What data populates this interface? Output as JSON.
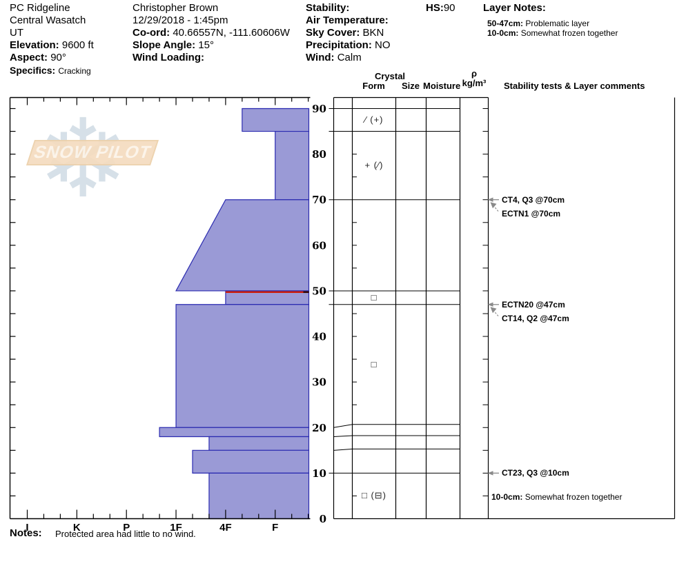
{
  "header": {
    "site": {
      "name": "PC Ridgeline",
      "range": "Central Wasatch",
      "state": "UT",
      "elevation_label": "Elevation:",
      "elevation": "9600 ft",
      "aspect_label": "Aspect:",
      "aspect": "90°",
      "specifics_label": "Specifics:",
      "specifics": "Cracking"
    },
    "observer": {
      "name": "Christopher Brown",
      "datetime": "12/29/2018 - 1:45pm",
      "coord_label": "Co-ord:",
      "coord": "40.66557N, -111.60606W",
      "slope_angle_label": "Slope Angle:",
      "slope_angle": "15°",
      "wind_loading_label": "Wind Loading:",
      "wind_loading": ""
    },
    "conditions": {
      "stability_label": "Stability:",
      "stability": "",
      "air_temp_label": "Air Temperature:",
      "air_temp": "",
      "sky_label": "Sky Cover:",
      "sky": "BKN",
      "precip_label": "Precipitation:",
      "precip": "NO",
      "wind_label": "Wind:",
      "wind": "Calm"
    },
    "hs_label": "HS:",
    "hs": "90",
    "layer_notes": {
      "title": "Layer Notes:",
      "items": [
        {
          "range": "50-47cm:",
          "text": "Problematic layer"
        },
        {
          "range": "10-0cm:",
          "text": "Somewhat frozen together"
        }
      ]
    }
  },
  "table_headers": {
    "crystal_group": "Crystal",
    "form": "Form",
    "size": "Size",
    "moisture": "Moisture",
    "density_rho": "ρ",
    "density_unit": "kg/m³",
    "comments": "Stability tests & Layer comments"
  },
  "chart_data": {
    "type": "snow-profile",
    "depth_unit": "cm",
    "hs_cm": 90,
    "depth_ticks_labeled": [
      0,
      10,
      20,
      30,
      40,
      50,
      60,
      70,
      80,
      90
    ],
    "depth_minor_step_cm": 5,
    "hardness_categories": [
      "I",
      "K",
      "P",
      "1F",
      "4F",
      "F"
    ],
    "layers": [
      {
        "top_cm": 90,
        "bottom_cm": 85,
        "hardness": "4F-",
        "grain_form": "∕ (+)",
        "problematic": false
      },
      {
        "top_cm": 85,
        "bottom_cm": 70,
        "hardness": "F",
        "grain_form": "+ (∕)",
        "problematic": false
      },
      {
        "top_cm": 70,
        "bottom_cm": 50,
        "hardness_top": "4F",
        "hardness_bottom": "1F",
        "grain_form": "",
        "problematic": false
      },
      {
        "top_cm": 50,
        "bottom_cm": 47,
        "hardness": "4F",
        "grain_form": "□",
        "problematic": true
      },
      {
        "top_cm": 47,
        "bottom_cm": 20,
        "hardness": "1F",
        "grain_form": "□",
        "problematic": false
      },
      {
        "top_cm": 20,
        "bottom_cm": 18,
        "hardness": "1F+",
        "grain_form": "",
        "problematic": false
      },
      {
        "top_cm": 18,
        "bottom_cm": 15,
        "hardness": "4F+",
        "grain_form": "",
        "problematic": false
      },
      {
        "top_cm": 15,
        "bottom_cm": 10,
        "hardness": "1F-",
        "grain_form": "",
        "problematic": false
      },
      {
        "top_cm": 10,
        "bottom_cm": 0,
        "hardness": "4F+",
        "grain_form": "□ (⊟)",
        "problematic": false
      }
    ],
    "stability_tests": [
      {
        "label": "CT4, Q3 @70cm",
        "depth_cm": 70,
        "offset_row": 0
      },
      {
        "label": "ECTN1 @70cm",
        "depth_cm": 70,
        "offset_row": 1
      },
      {
        "label": "ECTN20 @47cm",
        "depth_cm": 47,
        "offset_row": 0
      },
      {
        "label": "CT14, Q2 @47cm",
        "depth_cm": 47,
        "offset_row": 1
      },
      {
        "label": "CT23, Q3 @10cm",
        "depth_cm": 10,
        "offset_row": 0
      }
    ],
    "chart_layer_comment": {
      "range": "10-0cm:",
      "text": "Somewhat frozen together",
      "depth_cm": 5
    }
  },
  "notes": {
    "label": "Notes:",
    "text": "Protected area had little to no wind."
  },
  "watermark": {
    "text": "SNOW PILOT",
    "flake": "❄"
  },
  "colors": {
    "layer_fill": "#9a9ad6",
    "layer_border": "#2a2ab0",
    "problem_layer": "#cc1f0f",
    "problem_cap": "#3a0a05",
    "arrow_gray": "#8a8a8a",
    "grid_black": "#000000"
  }
}
